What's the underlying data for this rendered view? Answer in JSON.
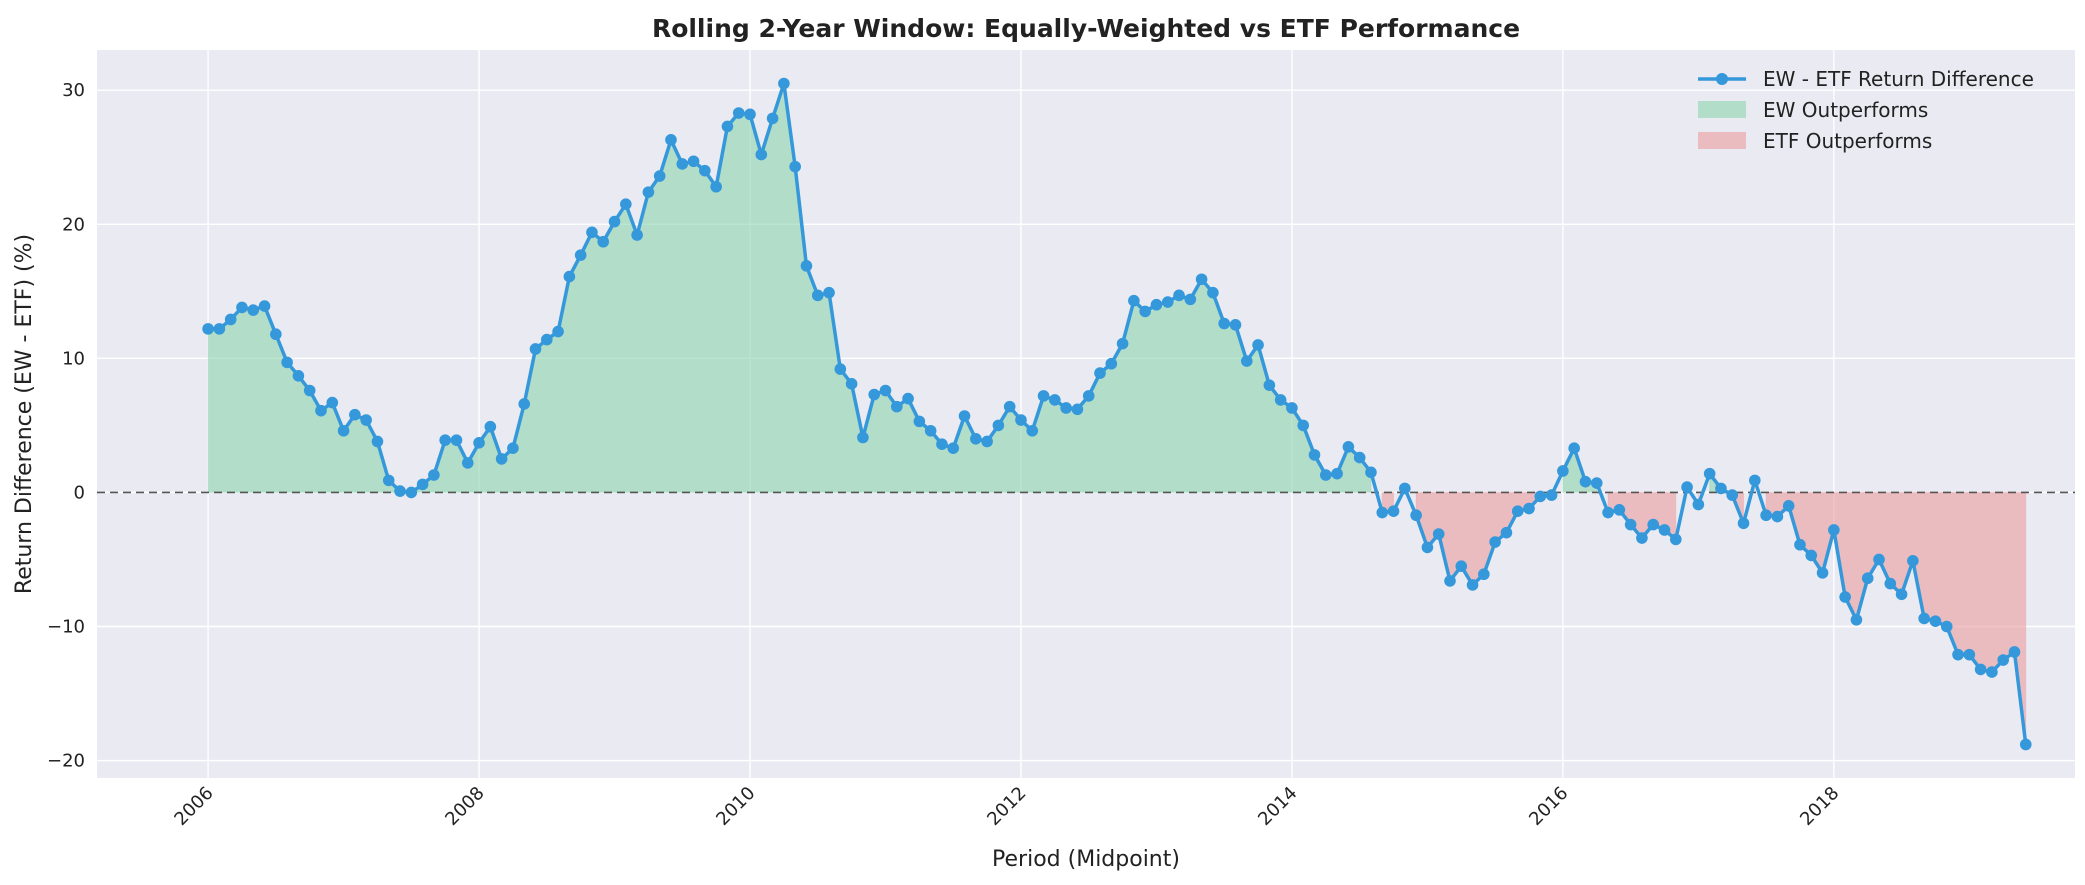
{
  "chart_data": {
    "type": "line",
    "title": "Rolling 2-Year Window: Equally-Weighted vs ETF Performance",
    "xlabel": "Period (Midpoint)",
    "ylabel": "Return Difference (EW - ETF) (%)",
    "xlim": [
      2005.18,
      2019.78
    ],
    "ylim": [
      -21.3,
      33
    ],
    "x_ticks": [
      2006,
      2008,
      2010,
      2012,
      2014,
      2016,
      2018
    ],
    "x_tick_labels": [
      "2006",
      "2008",
      "2010",
      "2012",
      "2014",
      "2016",
      "2018"
    ],
    "y_ticks": [
      -20,
      -10,
      0,
      10,
      20,
      30
    ],
    "y_tick_labels": [
      "−20",
      "−10",
      "0",
      "10",
      "20",
      "30"
    ],
    "grid": true,
    "reference_line": 0,
    "legend_position": "top-right",
    "legend": [
      {
        "label": "EW - ETF Return Difference",
        "kind": "line"
      },
      {
        "label": "EW Outperforms",
        "kind": "fill-positive"
      },
      {
        "label": "ETF Outperforms",
        "kind": "fill-negative"
      }
    ],
    "colors": {
      "line": "#3498db",
      "positive_fill": "#82d2a8",
      "negative_fill": "#e99c9f",
      "background": "#eaeaf2",
      "grid": "#ffffff",
      "reference": "#555555"
    },
    "x_start": 2006.0,
    "x_step": 0.0833333,
    "series": [
      {
        "name": "EW - ETF Return Difference",
        "values": [
          12.2,
          12.2,
          12.9,
          13.8,
          13.6,
          13.9,
          11.8,
          9.7,
          8.7,
          7.6,
          6.1,
          6.7,
          4.6,
          5.8,
          5.4,
          3.8,
          0.9,
          0.1,
          0.0,
          0.6,
          1.3,
          3.9,
          3.9,
          2.2,
          3.7,
          4.9,
          2.5,
          3.3,
          6.6,
          10.7,
          11.4,
          12.0,
          16.1,
          17.7,
          19.4,
          18.7,
          20.2,
          21.5,
          19.2,
          22.4,
          23.6,
          26.3,
          24.5,
          24.7,
          24.0,
          22.8,
          27.3,
          28.3,
          28.2,
          25.2,
          27.9,
          30.5,
          24.3,
          16.9,
          14.7,
          14.9,
          9.2,
          8.1,
          4.1,
          7.3,
          7.6,
          6.4,
          7.0,
          5.3,
          4.6,
          3.6,
          3.3,
          5.7,
          4.0,
          3.8,
          5.0,
          6.4,
          5.4,
          4.6,
          7.2,
          6.9,
          6.3,
          6.2,
          7.2,
          8.9,
          9.6,
          11.1,
          14.3,
          13.5,
          14.0,
          14.2,
          14.7,
          14.4,
          15.9,
          14.9,
          12.6,
          12.5,
          9.8,
          11.0,
          8.0,
          6.9,
          6.3,
          5.0,
          2.8,
          1.3,
          1.4,
          3.4,
          2.6,
          1.5,
          -1.5,
          -1.4,
          0.3,
          -1.7,
          -4.1,
          -3.1,
          -6.6,
          -5.5,
          -6.9,
          -6.1,
          -3.7,
          -3.0,
          -1.4,
          -1.2,
          -0.3,
          -0.2,
          1.6,
          3.3,
          0.8,
          0.7,
          -1.5,
          -1.3,
          -2.4,
          -3.4,
          -2.4,
          -2.8,
          -3.5,
          0.4,
          -0.9,
          1.4,
          0.3,
          -0.2,
          -2.3,
          0.9,
          -1.7,
          -1.8,
          -1.0,
          -3.9,
          -4.7,
          -6.0,
          -2.8,
          -7.8,
          -9.5,
          -6.4,
          -5.0,
          -6.8,
          -7.6,
          -5.1,
          -9.4,
          -9.6,
          -10.0,
          -12.1,
          -12.1,
          -13.2,
          -13.4,
          -12.5,
          -11.9,
          -18.8
        ]
      }
    ]
  }
}
